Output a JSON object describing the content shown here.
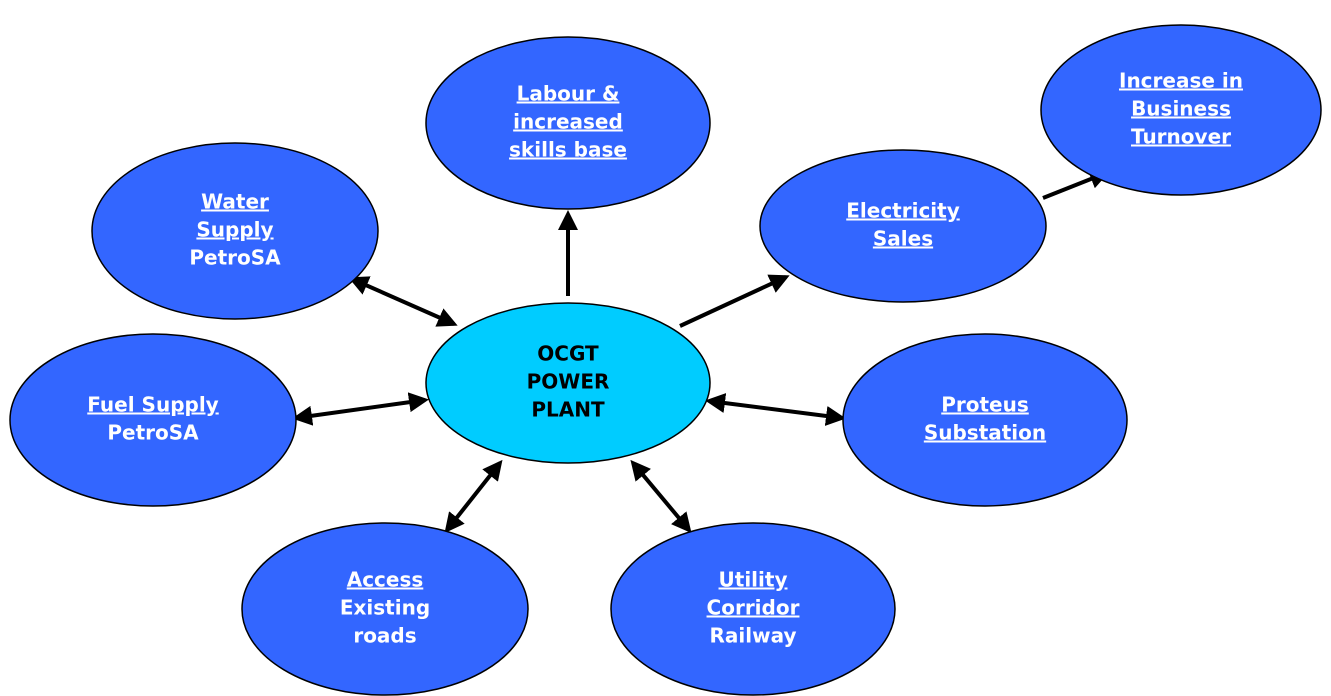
{
  "nodes": [
    {
      "title": [
        "OCGT",
        "POWER",
        "PLANT"
      ],
      "subtitle": []
    },
    {
      "title": [
        "Labour &",
        "increased",
        "skills base"
      ],
      "subtitle": []
    },
    {
      "title": [
        "Increase in",
        "Business",
        "Turnover"
      ],
      "subtitle": []
    },
    {
      "title": [
        "Water",
        "Supply"
      ],
      "subtitle": [
        "PetroSA"
      ]
    },
    {
      "title": [
        "Electricity",
        "Sales"
      ],
      "subtitle": []
    },
    {
      "title": [
        "Fuel Supply"
      ],
      "subtitle": [
        "PetroSA"
      ]
    },
    {
      "title": [
        "Proteus",
        "Substation"
      ],
      "subtitle": []
    },
    {
      "title": [
        "Access"
      ],
      "subtitle": [
        "Existing",
        "roads"
      ]
    },
    {
      "title": [
        "Utility",
        "Corridor"
      ],
      "subtitle": [
        "Railway"
      ]
    }
  ]
}
